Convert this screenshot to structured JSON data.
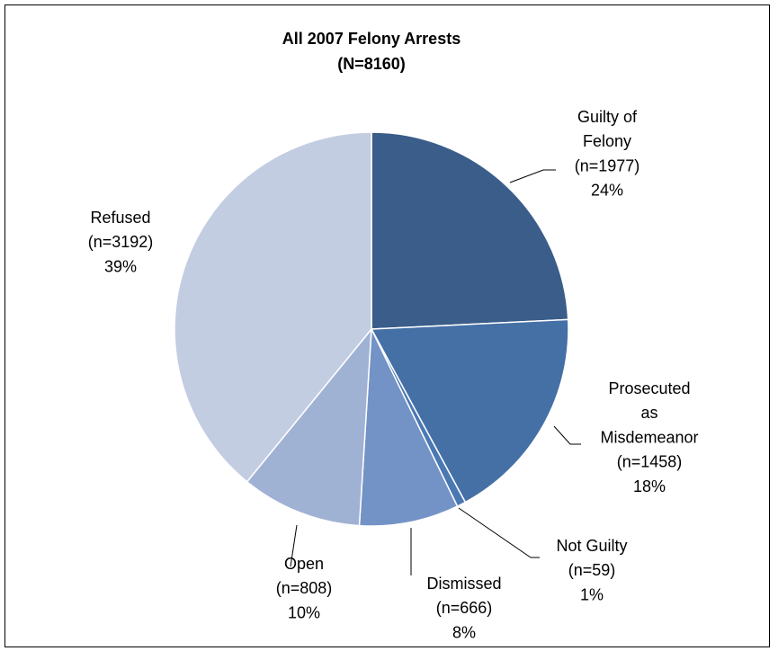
{
  "chart_data": {
    "type": "pie",
    "title": "All 2007 Felony Arrests",
    "subtitle": "(N=8160)",
    "categories": [
      [
        "Guilty of",
        "Felony"
      ],
      [
        "Prosecuted",
        "as",
        "Misdemeanor"
      ],
      [
        "Not Guilty"
      ],
      [
        "Dismissed"
      ],
      [
        "Open"
      ],
      [
        "Refused"
      ]
    ],
    "values": [
      1977,
      1458,
      59,
      666,
      808,
      3192
    ],
    "value_labels": [
      "(n=1977)",
      "(n=1458)",
      "(n=59)",
      "(n=666)",
      "(n=808)",
      "(n=3192)"
    ],
    "percentages": [
      24,
      18,
      1,
      8,
      10,
      39
    ],
    "percentage_labels": [
      "24%",
      "18%",
      "1%",
      "8%",
      "10%",
      "39%"
    ],
    "colors": [
      "#3a5d8a",
      "#4470a6",
      "#4a78b3",
      "#7393c7",
      "#a0b2d4",
      "#c3cde2"
    ]
  }
}
